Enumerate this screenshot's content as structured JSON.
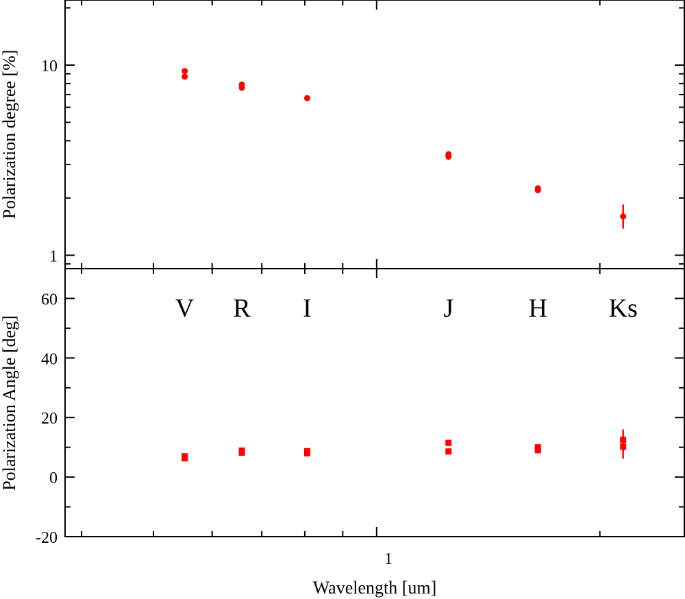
{
  "chart_data": [
    {
      "type": "scatter",
      "title": "",
      "ylabel": "Polarization degree [%]",
      "xlabel": "",
      "xscale": "log",
      "yscale": "log",
      "xlim": [
        0.38,
        2.6
      ],
      "ylim": [
        0.85,
        22
      ],
      "y_tick_labels": [
        {
          "value": 1,
          "label": "1"
        },
        {
          "value": 10,
          "label": "10"
        }
      ],
      "marker": "circle",
      "color": "#ff0000",
      "series": [
        {
          "x": [
            0.551,
            0.551,
            0.658,
            0.658,
            0.806,
            1.25,
            1.25,
            1.65,
            1.65,
            2.15
          ],
          "y": [
            9.3,
            8.7,
            7.9,
            7.6,
            6.7,
            3.4,
            3.3,
            2.25,
            2.2,
            1.6
          ],
          "yerr_low": [
            0,
            0,
            0,
            0,
            0,
            0,
            0,
            0,
            0,
            0.22
          ],
          "yerr_high": [
            0,
            0,
            0,
            0,
            0,
            0,
            0,
            0,
            0,
            0.25
          ]
        }
      ]
    },
    {
      "type": "scatter",
      "title": "",
      "ylabel": "Polarization Angle [deg]",
      "xlabel": "Wavelength [um]",
      "xscale": "log",
      "xlim": [
        0.38,
        2.6
      ],
      "ylim": [
        -20,
        70
      ],
      "y_ticks": [
        -20,
        0,
        20,
        40,
        60
      ],
      "y_tick_labels": [
        "-20",
        "0",
        "20",
        "40",
        "60"
      ],
      "x_tick_labels": [
        {
          "value": 1,
          "label": "1"
        }
      ],
      "marker": "square",
      "color": "#ff0000",
      "band_labels": [
        {
          "text": "V",
          "x": 0.551
        },
        {
          "text": "R",
          "x": 0.658
        },
        {
          "text": "I",
          "x": 0.806
        },
        {
          "text": "J",
          "x": 1.25
        },
        {
          "text": "H",
          "x": 1.65
        },
        {
          "text": "Ks",
          "x": 2.15
        }
      ],
      "series": [
        {
          "x": [
            0.551,
            0.551,
            0.658,
            0.658,
            0.806,
            0.806,
            1.25,
            1.25,
            1.65,
            1.65,
            2.15,
            2.15
          ],
          "y": [
            7.0,
            6.3,
            8.9,
            8.2,
            8.7,
            8.0,
            11.5,
            8.6,
            10.0,
            9.0,
            12.5,
            10.2
          ],
          "yerr": [
            0.5,
            0.5,
            0.5,
            0.5,
            0.4,
            0.4,
            0.4,
            0.4,
            0.4,
            0.4,
            3.5,
            4.0
          ]
        }
      ]
    }
  ]
}
